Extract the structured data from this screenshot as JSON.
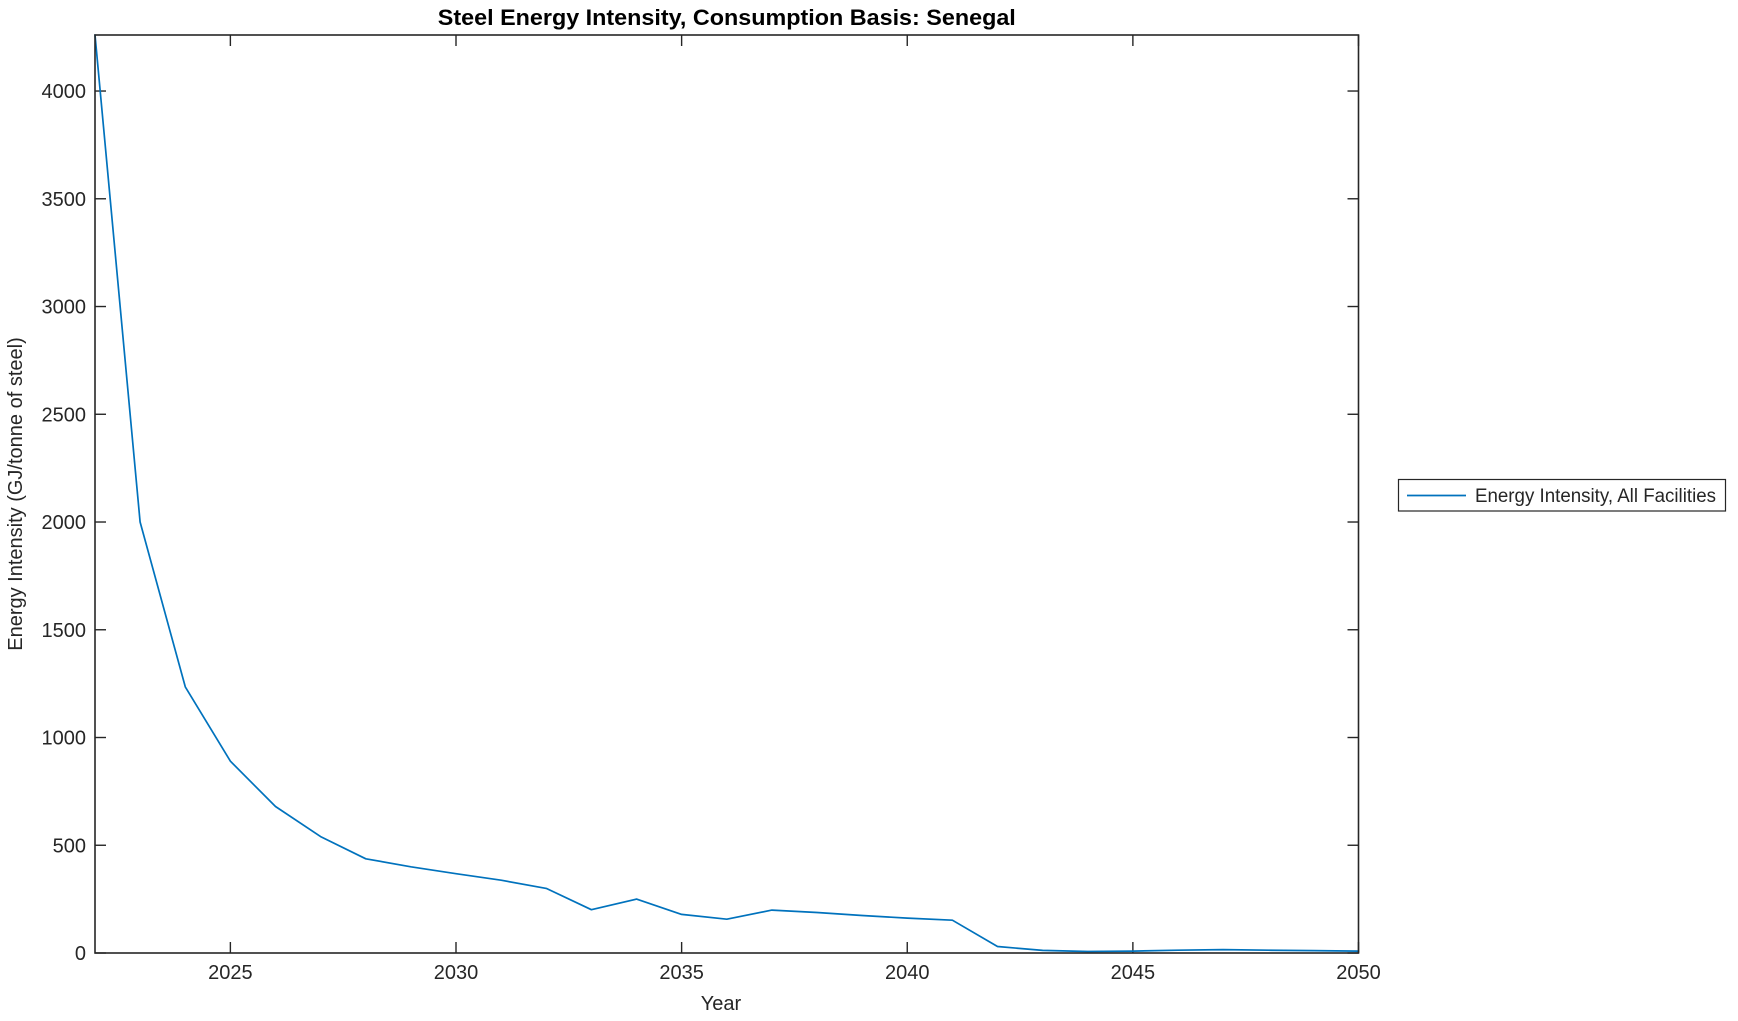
{
  "figure": {
    "background": "#ffffff",
    "axis_color": "#262626",
    "box_on": true,
    "tick_direction": "in"
  },
  "chart_data": {
    "type": "line",
    "title": "Steel Energy Intensity, Consumption Basis: Senegal",
    "xlabel": "Year",
    "ylabel": "Energy Intensity (GJ/tonne of steel)",
    "xlim": [
      2022,
      2050
    ],
    "ylim": [
      0,
      4260
    ],
    "xticks": [
      2025,
      2030,
      2035,
      2040,
      2045,
      2050
    ],
    "yticks": [
      0,
      500,
      1000,
      1500,
      2000,
      2500,
      3000,
      3500,
      4000
    ],
    "grid": false,
    "legend_position": "right-outside",
    "x": [
      2022,
      2023,
      2024,
      2025,
      2026,
      2027,
      2028,
      2029,
      2030,
      2031,
      2032,
      2033,
      2034,
      2035,
      2036,
      2037,
      2038,
      2039,
      2040,
      2041,
      2042,
      2043,
      2044,
      2045,
      2046,
      2047,
      2048,
      2049,
      2050
    ],
    "series": [
      {
        "name": "Energy Intensity, All Facilities",
        "color": "#0072BD",
        "values": [
          4260,
          2000,
          1235,
          890,
          680,
          540,
          437,
          400,
          368,
          338,
          300,
          201,
          250,
          179,
          157,
          199,
          188,
          174,
          162,
          152,
          30,
          12,
          7,
          9,
          13,
          16,
          13,
          11,
          9
        ]
      }
    ]
  }
}
